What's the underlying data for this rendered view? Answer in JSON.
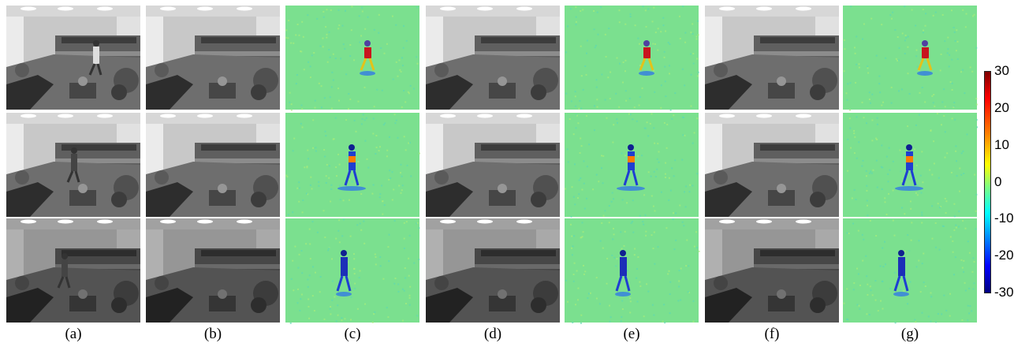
{
  "captions": [
    "(a)",
    "(b)",
    "(c)",
    "(d)",
    "(e)",
    "(f)",
    "(g)"
  ],
  "panel_types": [
    "photo",
    "photo",
    "heatmap",
    "photo",
    "heatmap",
    "photo",
    "heatmap"
  ],
  "colorbar": {
    "ticks": [
      "30",
      "20",
      "10",
      "0",
      "-10",
      "-20",
      "-30"
    ],
    "range": [
      -30,
      30
    ],
    "colormap": "jet"
  },
  "colors": {
    "heat_background": "#7be08f",
    "photo_wall": "#c9c9c9",
    "photo_floor": "#6e6e6e"
  }
}
